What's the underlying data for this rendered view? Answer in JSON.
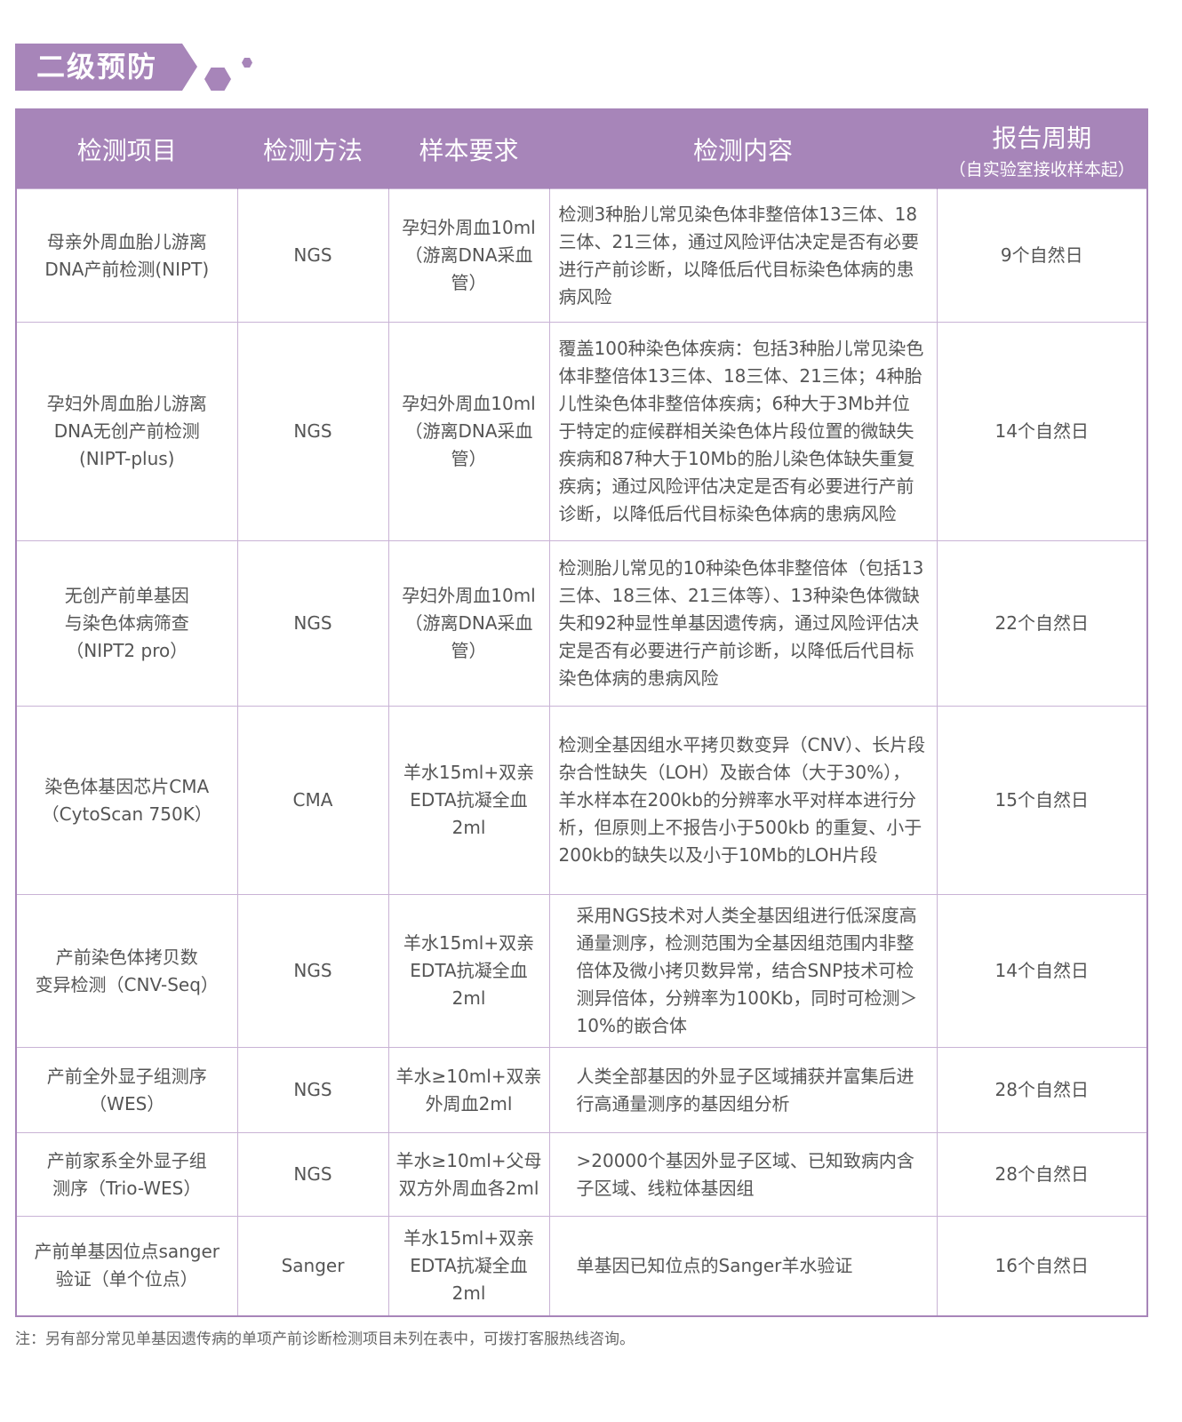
{
  "section_title": "二级预防",
  "accent_color": "#a785b9",
  "headers": [
    "检测项目",
    "检测方法",
    "样本要求",
    "检测内容",
    "报告周期"
  ],
  "header_sub": "（自实验室接收样本起）",
  "rows": [
    {
      "item": "母亲外周血胎儿游离\nDNA产前检测(NIPT)",
      "method": "NGS",
      "sample": "孕妇外周血10ml\n（游离DNA采血管）",
      "content": "检测3种胎儿常见染色体非整倍体13三体、18三体、21三体，通过风险评估决定是否有必要进行产前诊断，以降低后代目标染色体病的患病风险",
      "period": "9个自然日"
    },
    {
      "item": "孕妇外周血胎儿游离\nDNA无创产前检测\n(NIPT-plus)",
      "method": "NGS",
      "sample": "孕妇外周血10ml\n（游离DNA采血管）",
      "content": "覆盖100种染色体疾病：包括3种胎儿常见染色体非整倍体13三体、18三体、21三体；4种胎儿性染色体非整倍体疾病；6种大于3Mb并位于特定的症候群相关染色体片段位置的微缺失疾病和87种大于10Mb的胎儿染色体缺失重复疾病；通过风险评估决定是否有必要进行产前诊断，以降低后代目标染色体病的患病风险",
      "period": "14个自然日"
    },
    {
      "item": "无创产前单基因\n与染色体病筛查\n（NIPT2 pro）",
      "method": "NGS",
      "sample": "孕妇外周血10ml\n（游离DNA采血管）",
      "content": "检测胎儿常见的10种染色体非整倍体（包括13三体、18三体、21三体等）、13种染色体微缺失和92种显性单基因遗传病，通过风险评估决定是否有必要进行产前诊断，以降低后代目标染色体病的患病风险",
      "period": "22个自然日"
    },
    {
      "item": "染色体基因芯片CMA\n（CytoScan 750K）",
      "method": "CMA",
      "sample": "羊水15ml+双亲\nEDTA抗凝全血\n2ml",
      "content": "检测全基因组水平拷贝数变异（CNV）、长片段杂合性缺失（LOH）及嵌合体（大于30%），羊水样本在200kb的分辨率水平对样本进行分析，但原则上不报告小于500kb 的重复、小于200kb的缺失以及小于10Mb的LOH片段",
      "period": "15个自然日"
    },
    {
      "item": "产前染色体拷贝数\n变异检测（CNV-Seq）",
      "method": "NGS",
      "sample": "羊水15ml+双亲\nEDTA抗凝全血\n2ml",
      "content": "采用NGS技术对人类全基因组进行低深度高通量测序，检测范围为全基因组范围内非整倍体及微小拷贝数异常，结合SNP技术可检测异倍体，分辨率为100Kb，同时可检测＞10%的嵌合体",
      "period": "14个自然日"
    },
    {
      "item": "产前全外显子组测序\n（WES）",
      "method": "NGS",
      "sample": "羊水≥10ml+双亲\n外周血2ml",
      "content": "人类全部基因的外显子区域捕获并富集后进行高通量测序的基因组分析",
      "period": "28个自然日"
    },
    {
      "item": "产前家系全外显子组\n测序（Trio-WES）",
      "method": "NGS",
      "sample": "羊水≥10ml+父母\n双方外周血各2ml",
      "content": ">20000个基因外显子区域、已知致病内含子区域、线粒体基因组",
      "period": "28个自然日"
    },
    {
      "item": "产前单基因位点sanger\n验证（单个位点）",
      "method": "Sanger",
      "sample": "羊水15ml+双亲\nEDTA抗凝全血\n2ml",
      "content": "单基因已知位点的Sanger羊水验证",
      "period": "16个自然日"
    }
  ],
  "note": "注：另有部分常见单基因遗传病的单项产前诊断检测项目未列在表中，可拨打客服热线咨询。"
}
